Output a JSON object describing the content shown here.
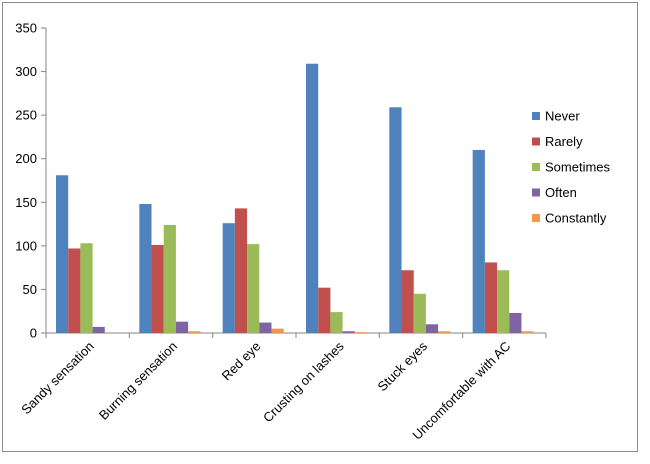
{
  "chart_data": {
    "type": "bar",
    "title": "",
    "xlabel": "",
    "ylabel": "",
    "categories": [
      "Sandy sensation",
      "Burning sensation",
      "Red eye",
      "Crusting on lashes",
      "Stuck eyes",
      "Uncomfortable with AC"
    ],
    "series": [
      {
        "name": "Never",
        "color": "#4F81BD",
        "values": [
          181,
          148,
          126,
          309,
          259,
          210
        ]
      },
      {
        "name": "Rarely",
        "color": "#C0504D",
        "values": [
          97,
          101,
          143,
          52,
          72,
          81
        ]
      },
      {
        "name": "Sometimes",
        "color": "#9BBB59",
        "values": [
          103,
          124,
          102,
          24,
          45,
          72
        ]
      },
      {
        "name": "Often",
        "color": "#8064A2",
        "values": [
          7,
          13,
          12,
          2,
          10,
          23
        ]
      },
      {
        "name": "Constantly",
        "color": "#F79646",
        "values": [
          0,
          2,
          5,
          1,
          2,
          2
        ]
      }
    ],
    "ylim": [
      0,
      350
    ],
    "yticks": [
      0,
      50,
      100,
      150,
      200,
      250,
      300,
      350
    ],
    "grid": false,
    "legend_position": "right"
  }
}
